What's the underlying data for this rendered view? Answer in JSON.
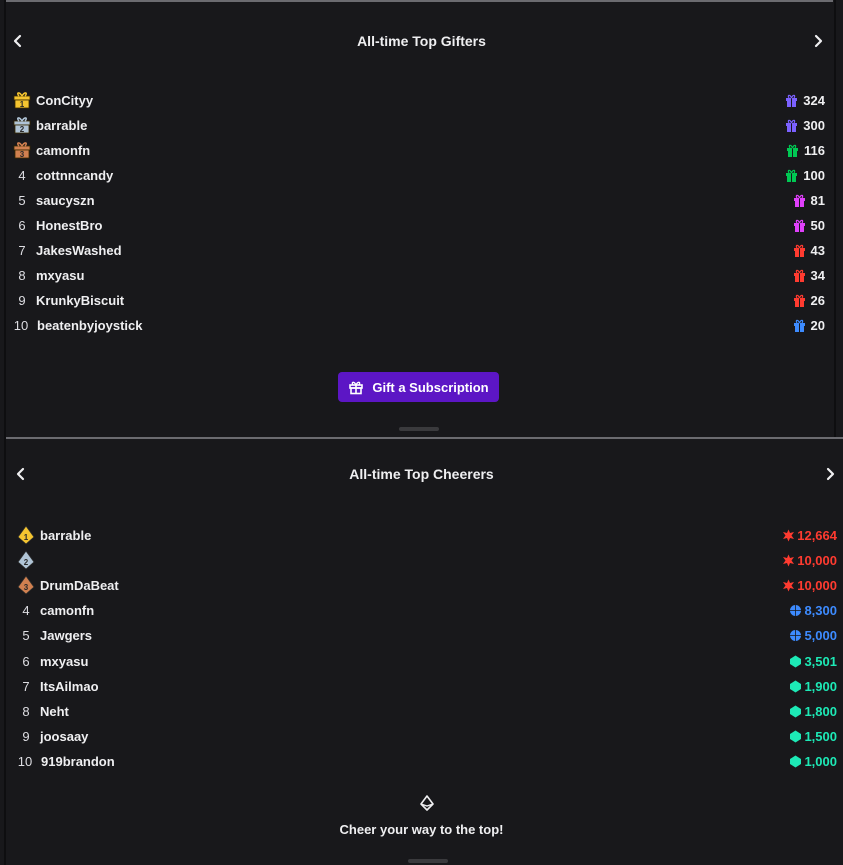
{
  "gifters": {
    "title": "All-time Top Gifters",
    "button_label": "Gift a Subscription",
    "entries": [
      {
        "rank": "1",
        "name": "ConCityy",
        "value": "324",
        "color": "#7b61ff"
      },
      {
        "rank": "2",
        "name": "barrable",
        "value": "300",
        "color": "#7b61ff"
      },
      {
        "rank": "3",
        "name": "camonfn",
        "value": "116",
        "color": "#00c853"
      },
      {
        "rank": "4",
        "name": "cottnncandy",
        "value": "100",
        "color": "#00c853"
      },
      {
        "rank": "5",
        "name": "saucyszn",
        "value": "81",
        "color": "#e040fb"
      },
      {
        "rank": "6",
        "name": "HonestBro",
        "value": "50",
        "color": "#e040fb"
      },
      {
        "rank": "7",
        "name": "JakesWashed",
        "value": "43",
        "color": "#ff3b30"
      },
      {
        "rank": "8",
        "name": "mxyasu",
        "value": "34",
        "color": "#ff3b30"
      },
      {
        "rank": "9",
        "name": "KrunkyBiscuit",
        "value": "26",
        "color": "#ff3b30"
      },
      {
        "rank": "10",
        "name": "beatenbyjoystick",
        "value": "20",
        "color": "#3d8bff"
      }
    ]
  },
  "cheerers": {
    "title": "All-time Top Cheerers",
    "cta": "Cheer your way to the top!",
    "entries": [
      {
        "rank": "1",
        "name": "barrable",
        "value": "12,664",
        "color": "#ff3b30",
        "tier": "red"
      },
      {
        "rank": "2",
        "name": "",
        "value": "10,000",
        "color": "#ff3b30",
        "tier": "red"
      },
      {
        "rank": "3",
        "name": "DrumDaBeat",
        "value": "10,000",
        "color": "#ff3b30",
        "tier": "red"
      },
      {
        "rank": "4",
        "name": "camonfn",
        "value": "8,300",
        "color": "#3d8bff",
        "tier": "blue"
      },
      {
        "rank": "5",
        "name": "Jawgers",
        "value": "5,000",
        "color": "#3d8bff",
        "tier": "blue"
      },
      {
        "rank": "6",
        "name": "mxyasu",
        "value": "3,501",
        "color": "#1de9b6",
        "tier": "teal"
      },
      {
        "rank": "7",
        "name": "ItsAilmao",
        "value": "1,900",
        "color": "#1de9b6",
        "tier": "teal"
      },
      {
        "rank": "8",
        "name": "Neht",
        "value": "1,800",
        "color": "#1de9b6",
        "tier": "teal"
      },
      {
        "rank": "9",
        "name": "joosaay",
        "value": "1,500",
        "color": "#1de9b6",
        "tier": "teal"
      },
      {
        "rank": "10",
        "name": "919brandon",
        "value": "1,000",
        "color": "#1de9b6",
        "tier": "teal"
      }
    ]
  },
  "icons": {
    "prev": "chevron-left-icon",
    "next": "chevron-right-icon",
    "gift": "gift-icon",
    "bits": "bits-icon"
  },
  "colors": {
    "background": "#18181b",
    "accent": "#5c16c5",
    "gold": "#f4c430",
    "silver": "#b0c4d6",
    "bronze": "#d08050"
  }
}
